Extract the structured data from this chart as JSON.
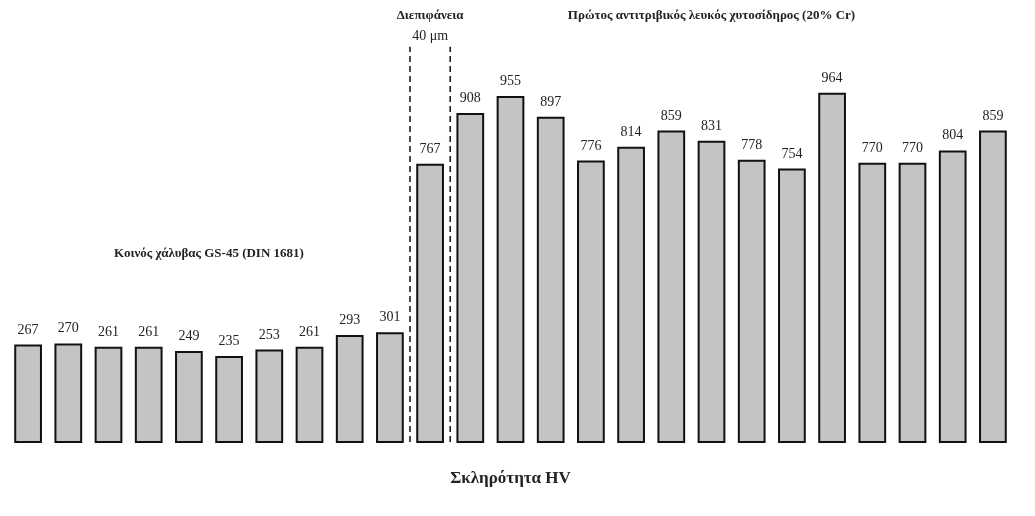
{
  "chart_data": {
    "type": "bar",
    "xlabel": "Σκληρότητα HV",
    "categories": [
      null,
      null,
      null,
      null,
      null,
      null,
      null,
      null,
      null,
      null,
      null,
      null,
      null,
      null,
      null,
      null,
      null,
      null,
      null,
      null,
      null,
      null,
      null,
      null,
      null
    ],
    "values": [
      267,
      270,
      261,
      261,
      249,
      235,
      253,
      261,
      293,
      301,
      767,
      908,
      955,
      897,
      776,
      814,
      859,
      831,
      778,
      754,
      964,
      770,
      770,
      804,
      859
    ],
    "color": "#c4c4c4",
    "data_labels": true,
    "tick_labels": false,
    "annotations": [
      "Κοινός χάλυβας GS-45 (DIN 1681)",
      "Διεπιφάνεια",
      "40 μm",
      "Πρώτος αντιτριβικός λευκός χυτοσίδηρος (20% Cr)"
    ]
  }
}
